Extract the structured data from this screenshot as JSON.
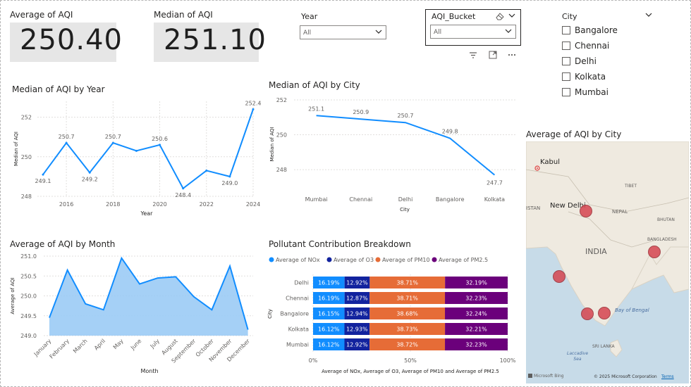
{
  "kpis": {
    "avg_label": "Average of AQI",
    "avg_value": "250.40",
    "median_label": "Median of AQI",
    "median_value": "251.10"
  },
  "slicers": {
    "year_label": "Year",
    "year_value": "All",
    "bucket_label": "AQI_Bucket",
    "bucket_value": "All",
    "city_label": "City",
    "cities": [
      "Bangalore",
      "Chennai",
      "Delhi",
      "Kolkata",
      "Mumbai"
    ]
  },
  "icons": [
    "eraser-icon",
    "chevron-down-icon",
    "filter-icon",
    "focus-mode-icon",
    "more-options-icon"
  ],
  "colors": {
    "line": "#118DFF",
    "area_fill": "#9BCBF5",
    "nox": "#118DFF",
    "o3": "#12239E",
    "pm10": "#E66C37",
    "pm25": "#6B007B",
    "bubble": "#D64550"
  },
  "chart_data": [
    {
      "type": "line",
      "title": "Median of AQI by Year",
      "xlabel": "Year",
      "ylabel": "Median of AQI",
      "x": [
        2015,
        2016,
        2017,
        2018,
        2019,
        2020,
        2021,
        2022,
        2023,
        2024
      ],
      "values": [
        249.1,
        250.7,
        249.2,
        250.7,
        250.3,
        250.6,
        248.4,
        249.3,
        249.0,
        252.4
      ],
      "data_labels": [
        "249.1",
        "250.7",
        "249.2",
        "250.7",
        "",
        "250.6",
        "248.4",
        "",
        "249.0",
        "252.4"
      ],
      "x_ticks": [
        "2016",
        "2018",
        "2020",
        "2022",
        "2024"
      ],
      "y_ticks": [
        "248",
        "250",
        "252"
      ],
      "ylim": [
        248,
        252.8
      ],
      "grid": true
    },
    {
      "type": "line",
      "title": "Median of AQI by City",
      "xlabel": "City",
      "ylabel": "Median of AQI",
      "categories": [
        "Mumbai",
        "Chennai",
        "Delhi",
        "Bangalore",
        "Kolkata"
      ],
      "values": [
        251.1,
        250.9,
        250.7,
        249.8,
        247.7
      ],
      "data_labels": [
        "251.1",
        "250.9",
        "250.7",
        "249.8",
        "247.7"
      ],
      "y_ticks": [
        "248",
        "250",
        "252"
      ],
      "ylim": [
        247.2,
        252.2
      ],
      "grid": true
    },
    {
      "type": "area",
      "title": "Average of AQI by Month",
      "xlabel": "Month",
      "ylabel": "Average of AQI",
      "categories": [
        "January",
        "February",
        "March",
        "April",
        "May",
        "June",
        "July",
        "August",
        "September",
        "October",
        "November",
        "December"
      ],
      "values": [
        249.45,
        250.65,
        249.8,
        249.65,
        250.95,
        250.3,
        250.45,
        250.48,
        249.98,
        249.65,
        250.75,
        249.15
      ],
      "y_ticks": [
        "249.0",
        "249.5",
        "250.0",
        "250.5",
        "251.0"
      ],
      "ylim": [
        249.0,
        251.0
      ],
      "grid": true
    },
    {
      "type": "bar",
      "stacked": "100%",
      "orientation": "horizontal",
      "title": "Pollutant Contribution Breakdown",
      "xlabel": "Average of NOx, Average of O3, Average of PM10 and Average of PM2.5",
      "ylabel": "City",
      "legend_position": "top",
      "categories": [
        "Delhi",
        "Chennai",
        "Bangalore",
        "Kolkata",
        "Mumbai"
      ],
      "series": [
        {
          "name": "Average of NOx",
          "values": [
            16.19,
            16.19,
            16.15,
            16.12,
            16.12
          ],
          "labels": [
            "16.19%",
            "16.19%",
            "16.15%",
            "16.12%",
            "16.12%"
          ]
        },
        {
          "name": "Average of O3",
          "values": [
            12.92,
            12.87,
            12.94,
            12.93,
            12.92
          ],
          "labels": [
            "12.92%",
            "12.87%",
            "12.94%",
            "12.93%",
            "12.92%"
          ]
        },
        {
          "name": "Average of PM10",
          "values": [
            38.71,
            38.71,
            38.68,
            38.73,
            38.72
          ],
          "labels": [
            "38.71%",
            "38.71%",
            "38.68%",
            "38.73%",
            "38.72%"
          ]
        },
        {
          "name": "Average of PM2.5",
          "values": [
            32.19,
            32.23,
            32.24,
            32.21,
            32.23
          ],
          "labels": [
            "32.19%",
            "32.23%",
            "32.24%",
            "32.21%",
            "32.23%"
          ]
        }
      ],
      "x_ticks": [
        "0%",
        "50%",
        "100%"
      ]
    }
  ],
  "map": {
    "title": "Average of AQI by City",
    "labels": {
      "kabul": "Kabul",
      "new_delhi": "New Delhi",
      "tibet": "TIBET",
      "nepal": "NEPAL",
      "bhutan": "BHUTAN",
      "bangladesh": "BANGLADESH",
      "india": "INDIA",
      "istan": "ISTAN",
      "bay_of_bengal": "Bay of Bengal",
      "sri_lanka": "SRI LANKA",
      "laccadive": "Laccadive Sea"
    },
    "bubbles": [
      "Delhi",
      "Kolkata",
      "Mumbai",
      "Bangalore",
      "Chennai"
    ],
    "attribution": {
      "bing": "Microsoft Bing",
      "copyright": "© 2025 Microsoft Corporation",
      "terms": "Terms"
    }
  }
}
